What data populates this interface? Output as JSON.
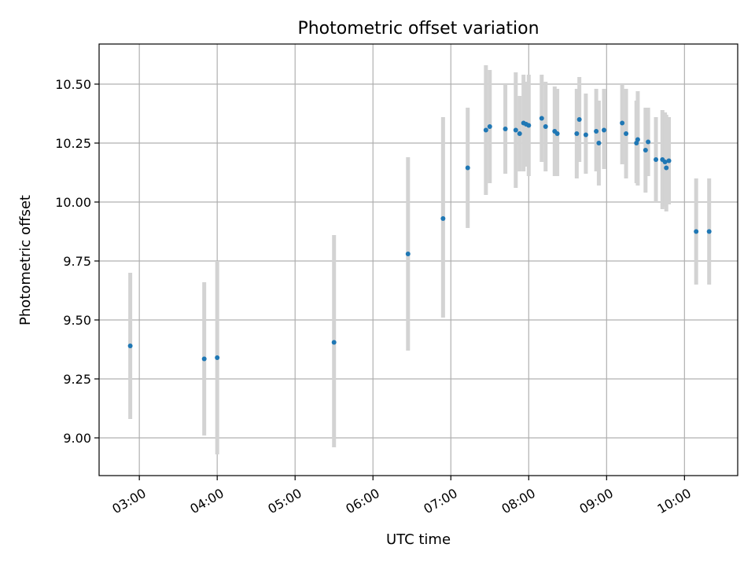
{
  "chart_data": {
    "type": "scatter",
    "title": "Photometric offset variation",
    "xlabel": "UTC time",
    "ylabel": "Photometric offset",
    "xlim": [
      "02:29",
      "10:41"
    ],
    "ylim": [
      8.84,
      10.67
    ],
    "x_ticks": [
      "03:00",
      "04:00",
      "05:00",
      "06:00",
      "07:00",
      "08:00",
      "09:00",
      "10:00"
    ],
    "y_ticks": [
      "9.00",
      "9.25",
      "9.50",
      "9.75",
      "10.00",
      "10.25",
      "10.50"
    ],
    "grid": true,
    "legend": "none",
    "marker_color": "#1f77b4",
    "errorbar_color": "#d3d3d3",
    "points": [
      {
        "x": "02:53",
        "y": 9.39,
        "low": 9.08,
        "high": 9.7
      },
      {
        "x": "03:50",
        "y": 9.335,
        "low": 9.01,
        "high": 9.66
      },
      {
        "x": "04:00",
        "y": 9.34,
        "low": 8.93,
        "high": 9.75
      },
      {
        "x": "05:30",
        "y": 9.405,
        "low": 8.96,
        "high": 9.86
      },
      {
        "x": "06:27",
        "y": 9.78,
        "low": 9.37,
        "high": 10.19
      },
      {
        "x": "06:54",
        "y": 9.93,
        "low": 9.51,
        "high": 10.36
      },
      {
        "x": "07:13",
        "y": 10.145,
        "low": 9.89,
        "high": 10.4
      },
      {
        "x": "07:27",
        "y": 10.305,
        "low": 10.03,
        "high": 10.58
      },
      {
        "x": "07:30",
        "y": 10.32,
        "low": 10.08,
        "high": 10.56
      },
      {
        "x": "07:42",
        "y": 10.31,
        "low": 10.12,
        "high": 10.5
      },
      {
        "x": "07:50",
        "y": 10.305,
        "low": 10.06,
        "high": 10.55
      },
      {
        "x": "07:53",
        "y": 10.29,
        "low": 10.13,
        "high": 10.45
      },
      {
        "x": "07:56",
        "y": 10.335,
        "low": 10.13,
        "high": 10.54
      },
      {
        "x": "07:58",
        "y": 10.33,
        "low": 10.15,
        "high": 10.51
      },
      {
        "x": "08:00",
        "y": 10.325,
        "low": 10.11,
        "high": 10.54
      },
      {
        "x": "08:10",
        "y": 10.355,
        "low": 10.17,
        "high": 10.54
      },
      {
        "x": "08:13",
        "y": 10.32,
        "low": 10.13,
        "high": 10.51
      },
      {
        "x": "08:20",
        "y": 10.3,
        "low": 10.11,
        "high": 10.49
      },
      {
        "x": "08:22",
        "y": 10.29,
        "low": 10.11,
        "high": 10.48
      },
      {
        "x": "08:37",
        "y": 10.29,
        "low": 10.1,
        "high": 10.48
      },
      {
        "x": "08:39",
        "y": 10.35,
        "low": 10.17,
        "high": 10.53
      },
      {
        "x": "08:44",
        "y": 10.285,
        "low": 10.12,
        "high": 10.46
      },
      {
        "x": "08:52",
        "y": 10.3,
        "low": 10.13,
        "high": 10.48
      },
      {
        "x": "08:54",
        "y": 10.25,
        "low": 10.07,
        "high": 10.43
      },
      {
        "x": "08:58",
        "y": 10.305,
        "low": 10.14,
        "high": 10.48
      },
      {
        "x": "09:12",
        "y": 10.335,
        "low": 10.16,
        "high": 10.5
      },
      {
        "x": "09:15",
        "y": 10.29,
        "low": 10.1,
        "high": 10.48
      },
      {
        "x": "09:23",
        "y": 10.25,
        "low": 10.08,
        "high": 10.43
      },
      {
        "x": "09:24",
        "y": 10.265,
        "low": 10.07,
        "high": 10.47
      },
      {
        "x": "09:30",
        "y": 10.22,
        "low": 10.04,
        "high": 10.4
      },
      {
        "x": "09:32",
        "y": 10.255,
        "low": 10.11,
        "high": 10.4
      },
      {
        "x": "09:38",
        "y": 10.18,
        "low": 10.0,
        "high": 10.36
      },
      {
        "x": "09:43",
        "y": 10.18,
        "low": 9.97,
        "high": 10.39
      },
      {
        "x": "09:45",
        "y": 10.17,
        "low": 9.98,
        "high": 10.38
      },
      {
        "x": "09:46",
        "y": 10.145,
        "low": 9.96,
        "high": 10.37
      },
      {
        "x": "09:48",
        "y": 10.175,
        "low": 9.99,
        "high": 10.36
      },
      {
        "x": "10:09",
        "y": 9.875,
        "low": 9.65,
        "high": 10.1
      },
      {
        "x": "10:19",
        "y": 9.875,
        "low": 9.65,
        "high": 10.1
      }
    ]
  }
}
